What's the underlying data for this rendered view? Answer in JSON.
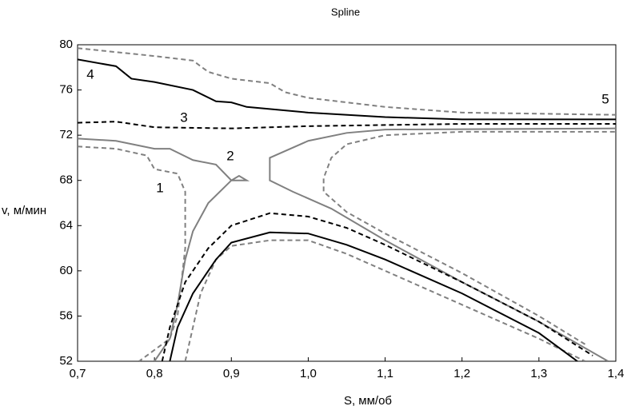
{
  "chart_data": {
    "type": "line",
    "title": "Spline",
    "xlabel": "S, мм/об",
    "ylabel": "v, м/мин",
    "xlim": [
      0.7,
      1.4
    ],
    "ylim": [
      52,
      80
    ],
    "xticks": [
      {
        "value": 0.7,
        "label": "0,7"
      },
      {
        "value": 0.8,
        "label": "0,8"
      },
      {
        "value": 0.9,
        "label": "0,9"
      },
      {
        "value": 1.0,
        "label": "1,0"
      },
      {
        "value": 1.1,
        "label": "1,1"
      },
      {
        "value": 1.2,
        "label": "1,2"
      },
      {
        "value": 1.3,
        "label": "1,3"
      },
      {
        "value": 1.4,
        "label": "1,4"
      }
    ],
    "yticks": [
      52,
      56,
      60,
      64,
      68,
      72,
      76,
      80
    ],
    "grid": false,
    "annotations": [
      "1",
      "2",
      "3",
      "4",
      "5"
    ],
    "series": [
      {
        "color": "#000000",
        "dash": "solid",
        "x": [
          0.7,
          0.75,
          0.77,
          0.8,
          0.85,
          0.88,
          0.9,
          0.92,
          1.0,
          1.1,
          1.2,
          1.4
        ],
        "values": [
          78.7,
          78.1,
          77.0,
          76.7,
          76.0,
          75.0,
          74.9,
          74.5,
          74.0,
          73.6,
          73.4,
          73.4
        ]
      },
      {
        "color": "#808080",
        "dash": "dashed",
        "x": [
          0.7,
          0.8,
          0.85,
          0.87,
          0.9,
          0.95,
          0.97,
          1.0,
          1.1,
          1.2,
          1.3,
          1.4
        ],
        "values": [
          79.7,
          79.0,
          78.6,
          77.6,
          77.0,
          76.6,
          75.8,
          75.3,
          74.5,
          74.0,
          73.9,
          73.8
        ]
      },
      {
        "color": "#000000",
        "dash": "dashed",
        "x": [
          0.7,
          0.75,
          0.8,
          0.9,
          1.0,
          1.1,
          1.2,
          1.4
        ],
        "values": [
          73.1,
          73.2,
          72.7,
          72.6,
          72.8,
          72.9,
          73.0,
          73.0
        ]
      },
      {
        "color": "#808080",
        "dash": "solid",
        "x": [
          1.39,
          1.3,
          1.2,
          1.1,
          1.03,
          0.98,
          0.95,
          0.95,
          1.0,
          1.05,
          1.1,
          1.4
        ],
        "values": [
          52,
          55.5,
          59,
          62.7,
          65.5,
          67,
          68,
          70,
          71.5,
          72.2,
          72.5,
          72.6
        ]
      },
      {
        "color": "#808080",
        "dash": "dashed",
        "x": [
          1.36,
          1.3,
          1.2,
          1.1,
          1.05,
          1.02,
          1.02,
          1.03,
          1.05,
          1.1,
          1.2,
          1.4
        ],
        "values": [
          53.5,
          56,
          59.8,
          63.3,
          65.2,
          67,
          68.2,
          70,
          71.2,
          72.0,
          72.3,
          72.3
        ]
      },
      {
        "color": "#808080",
        "dash": "solid",
        "x": [
          0.7,
          0.75,
          0.8,
          0.82,
          0.85,
          0.88,
          0.9,
          0.91,
          0.92,
          0.9,
          0.87,
          0.85,
          0.84,
          0.83,
          0.82,
          0.8
        ],
        "values": [
          71.7,
          71.5,
          70.8,
          70.8,
          69.8,
          69.4,
          68,
          68.4,
          68,
          68,
          66,
          63.5,
          61,
          57,
          54,
          52
        ]
      },
      {
        "color": "#808080",
        "dash": "dashed",
        "x": [
          0.7,
          0.75,
          0.79,
          0.8,
          0.83,
          0.84,
          0.84,
          0.83,
          0.82,
          0.78
        ],
        "values": [
          71,
          70.8,
          70.2,
          69,
          68.6,
          67,
          62,
          56,
          54,
          52
        ]
      },
      {
        "color": "#808080",
        "dash": "dashed",
        "x": [
          0.84,
          0.85,
          0.86,
          0.88,
          0.9,
          0.95,
          1.0,
          1.05,
          1.1,
          1.2,
          1.3,
          1.36
        ],
        "values": [
          52,
          55,
          58,
          61,
          62.2,
          62.7,
          62.7,
          61.5,
          60,
          57,
          54,
          52
        ]
      },
      {
        "color": "#000000",
        "dash": "solid",
        "x": [
          0.82,
          0.83,
          0.85,
          0.88,
          0.9,
          0.95,
          1.0,
          1.05,
          1.1,
          1.2,
          1.3,
          1.35
        ],
        "values": [
          52,
          55,
          58,
          61,
          62.5,
          63.4,
          63.3,
          62.3,
          61,
          58,
          54.5,
          52
        ]
      },
      {
        "color": "#000000",
        "dash": "dashed",
        "x": [
          0.81,
          0.82,
          0.84,
          0.87,
          0.9,
          0.95,
          1.0,
          1.05,
          1.1,
          1.2,
          1.3,
          1.37
        ],
        "values": [
          52,
          55,
          59,
          62,
          64,
          65.1,
          64.8,
          63.8,
          62.3,
          59,
          55.5,
          52.5
        ]
      }
    ]
  }
}
